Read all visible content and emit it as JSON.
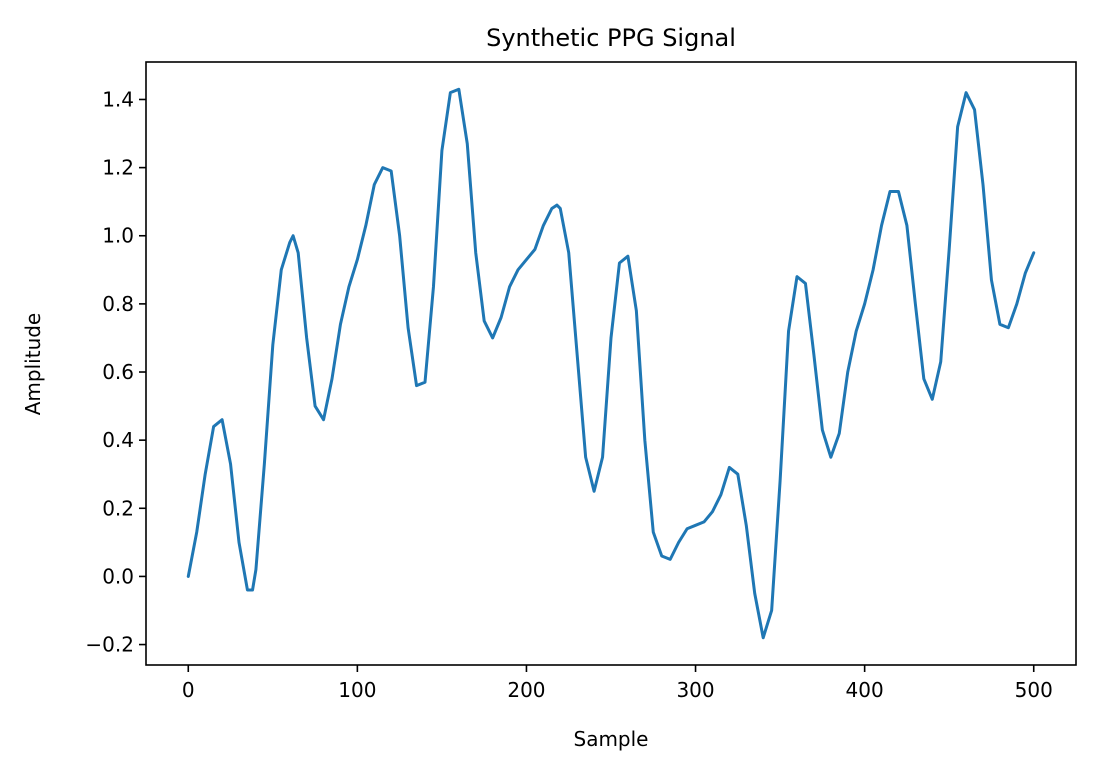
{
  "chart_data": {
    "type": "line",
    "title": "Synthetic PPG Signal",
    "xlabel": "Sample",
    "ylabel": "Amplitude",
    "xlim": [
      -25,
      525
    ],
    "ylim": [
      -0.26,
      1.51
    ],
    "grid": false,
    "legend": "none",
    "x_ticks": [
      0,
      100,
      200,
      300,
      400,
      500
    ],
    "x_tick_labels": [
      "0",
      "100",
      "200",
      "300",
      "400",
      "500"
    ],
    "y_ticks": [
      -0.2,
      0.0,
      0.2,
      0.4,
      0.6,
      0.8,
      1.0,
      1.2,
      1.4
    ],
    "y_tick_labels": [
      "−0.2",
      "0.0",
      "0.2",
      "0.4",
      "0.6",
      "0.8",
      "1.0",
      "1.2",
      "1.4"
    ],
    "series": [
      {
        "color": "#1f77b4",
        "x": [
          0,
          5,
          10,
          15,
          20,
          25,
          30,
          35,
          38,
          40,
          45,
          50,
          55,
          60,
          62,
          65,
          70,
          75,
          80,
          85,
          90,
          95,
          100,
          105,
          110,
          115,
          120,
          125,
          130,
          135,
          140,
          145,
          150,
          155,
          160,
          165,
          170,
          175,
          180,
          185,
          190,
          195,
          200,
          205,
          210,
          215,
          218,
          220,
          225,
          230,
          235,
          240,
          245,
          250,
          255,
          260,
          265,
          270,
          275,
          280,
          285,
          290,
          295,
          300,
          305,
          310,
          315,
          320,
          325,
          330,
          335,
          340,
          345,
          350,
          355,
          360,
          365,
          370,
          375,
          380,
          385,
          390,
          395,
          400,
          405,
          410,
          415,
          420,
          425,
          430,
          435,
          440,
          445,
          450,
          455,
          460,
          465,
          470,
          475,
          480,
          485,
          490,
          495,
          500
        ],
        "y": [
          0.0,
          0.13,
          0.3,
          0.44,
          0.46,
          0.33,
          0.1,
          -0.04,
          -0.04,
          0.02,
          0.33,
          0.68,
          0.9,
          0.98,
          1.0,
          0.95,
          0.7,
          0.5,
          0.46,
          0.58,
          0.74,
          0.85,
          0.93,
          1.03,
          1.15,
          1.2,
          1.19,
          1.0,
          0.73,
          0.56,
          0.57,
          0.85,
          1.25,
          1.42,
          1.43,
          1.27,
          0.95,
          0.75,
          0.7,
          0.76,
          0.85,
          0.9,
          0.93,
          0.96,
          1.03,
          1.08,
          1.09,
          1.08,
          0.95,
          0.65,
          0.35,
          0.25,
          0.35,
          0.7,
          0.92,
          0.94,
          0.78,
          0.4,
          0.13,
          0.06,
          0.05,
          0.1,
          0.14,
          0.15,
          0.16,
          0.19,
          0.24,
          0.32,
          0.3,
          0.15,
          -0.05,
          -0.18,
          -0.1,
          0.28,
          0.72,
          0.88,
          0.86,
          0.65,
          0.43,
          0.35,
          0.42,
          0.6,
          0.72,
          0.8,
          0.9,
          1.03,
          1.13,
          1.13,
          1.03,
          0.8,
          0.58,
          0.52,
          0.63,
          0.96,
          1.32,
          1.42,
          1.37,
          1.15,
          0.87,
          0.74,
          0.73,
          0.8,
          0.89,
          0.95
        ]
      }
    ]
  }
}
